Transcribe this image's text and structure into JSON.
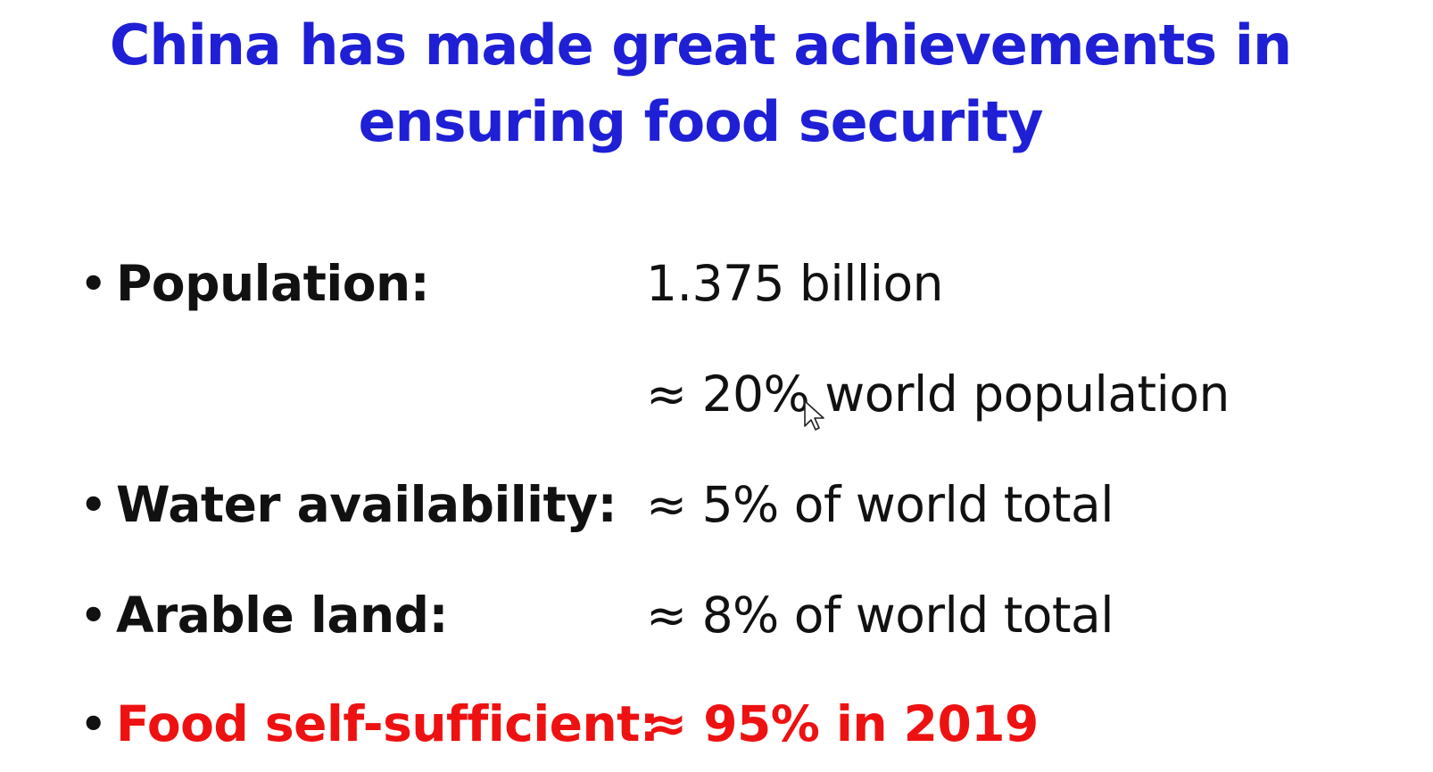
{
  "colors": {
    "title": "#1f1fd6",
    "text": "#111111",
    "highlight": "#ee1111"
  },
  "title": {
    "line1": "China has made great achievements in",
    "line2": "ensuring food security"
  },
  "bullets": [
    {
      "label": "Population:",
      "value": "1.375 billion",
      "value2": "≈ 20% world population",
      "highlight": false
    },
    {
      "label": "Water availability:",
      "value": "≈ 5% of world total",
      "highlight": false
    },
    {
      "label": "Arable land:",
      "value": "≈ 8% of world total",
      "highlight": false
    },
    {
      "label": "Food self-sufficient:",
      "value": "≈ 95% in 2019",
      "highlight": true
    }
  ],
  "bullet_glyph": "•",
  "cursor_icon": "mouse-pointer-icon"
}
